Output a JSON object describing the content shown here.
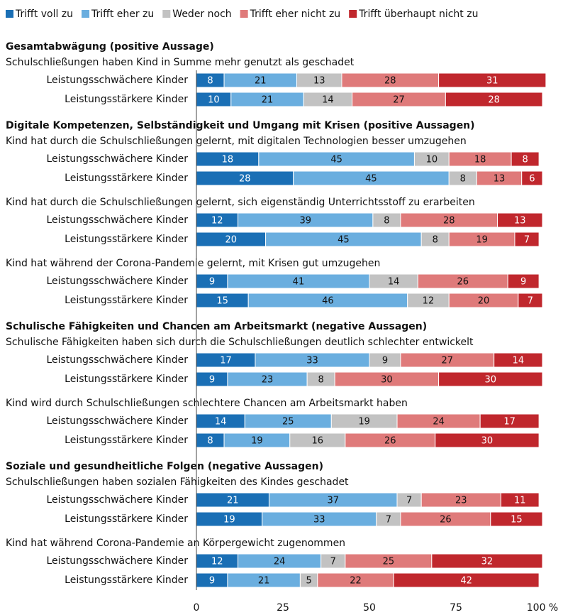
{
  "chart_data": {
    "type": "stacked_barh",
    "series": [
      {
        "name": "Trifft voll zu",
        "color": "#1a6fb5"
      },
      {
        "name": "Trifft eher zu",
        "color": "#6aaedf"
      },
      {
        "name": "Weder noch",
        "color": "#c2c2c2"
      },
      {
        "name": "Trifft eher nicht zu",
        "color": "#df7a7a"
      },
      {
        "name": "Trifft überhaupt nicht zu",
        "color": "#c0272d"
      }
    ],
    "groups": [
      {
        "title": "Gesamtabwägung (positive Aussage)",
        "statements": [
          {
            "text": "Schulschließungen haben Kind in Summe mehr genutzt als geschadet",
            "rows": [
              {
                "label": "Leistungsschwächere Kinder",
                "values": [
                  8,
                  21,
                  13,
                  28,
                  31
                ]
              },
              {
                "label": "Leistungsstärkere Kinder",
                "values": [
                  10,
                  21,
                  14,
                  27,
                  28
                ]
              }
            ]
          }
        ]
      },
      {
        "title": "Digitale Kompetenzen, Selbständigkeit und Umgang mit Krisen (positive Aussagen)",
        "statements": [
          {
            "text": "Kind hat durch die Schulschließungen gelernt, mit digitalen Technologien besser umzugehen",
            "rows": [
              {
                "label": "Leistungsschwächere Kinder",
                "values": [
                  18,
                  45,
                  10,
                  18,
                  8
                ]
              },
              {
                "label": "Leistungsstärkere Kinder",
                "values": [
                  28,
                  45,
                  8,
                  13,
                  6
                ]
              }
            ]
          },
          {
            "text": "Kind hat durch die Schulschließungen gelernt, sich eigenständig Unterrichtsstoff zu erarbeiten",
            "rows": [
              {
                "label": "Leistungsschwächere Kinder",
                "values": [
                  12,
                  39,
                  8,
                  28,
                  13
                ]
              },
              {
                "label": "Leistungsstärkere Kinder",
                "values": [
                  20,
                  45,
                  8,
                  19,
                  7
                ]
              }
            ]
          },
          {
            "text": "Kind hat während der Corona-Pandemie gelernt, mit Krisen gut umzugehen",
            "rows": [
              {
                "label": "Leistungsschwächere Kinder",
                "values": [
                  9,
                  41,
                  14,
                  26,
                  9
                ]
              },
              {
                "label": "Leistungsstärkere Kinder",
                "values": [
                  15,
                  46,
                  12,
                  20,
                  7
                ]
              }
            ]
          }
        ]
      },
      {
        "title": "Schulische Fähigkeiten und Chancen am Arbeitsmarkt (negative Aussagen)",
        "statements": [
          {
            "text": "Schulische Fähigkeiten haben sich durch die Schulschließungen deutlich schlechter entwickelt",
            "rows": [
              {
                "label": "Leistungsschwächere Kinder",
                "values": [
                  17,
                  33,
                  9,
                  27,
                  14
                ]
              },
              {
                "label": "Leistungsstärkere Kinder",
                "values": [
                  9,
                  23,
                  8,
                  30,
                  30
                ]
              }
            ]
          },
          {
            "text": "Kind wird durch Schulschließungen schlechtere Chancen am Arbeitsmarkt haben",
            "rows": [
              {
                "label": "Leistungsschwächere Kinder",
                "values": [
                  14,
                  25,
                  19,
                  24,
                  17
                ]
              },
              {
                "label": "Leistungsstärkere Kinder",
                "values": [
                  8,
                  19,
                  16,
                  26,
                  30
                ]
              }
            ]
          }
        ]
      },
      {
        "title": "Soziale und gesundheitliche Folgen (negative Aussagen)",
        "statements": [
          {
            "text": "Schulschließungen haben sozialen Fähigkeiten des Kindes geschadet",
            "rows": [
              {
                "label": "Leistungsschwächere Kinder",
                "values": [
                  21,
                  37,
                  7,
                  23,
                  11
                ]
              },
              {
                "label": "Leistungsstärkere Kinder",
                "values": [
                  19,
                  33,
                  7,
                  26,
                  15
                ]
              }
            ]
          },
          {
            "text": "Kind hat während Corona-Pandemie an Körpergewicht zugenommen",
            "rows": [
              {
                "label": "Leistungsschwächere Kinder",
                "values": [
                  12,
                  24,
                  7,
                  25,
                  32
                ]
              },
              {
                "label": "Leistungsstärkere Kinder",
                "values": [
                  9,
                  21,
                  5,
                  22,
                  42
                ]
              }
            ]
          }
        ]
      }
    ],
    "xlim": [
      0,
      100
    ],
    "xticks": [
      0,
      25,
      50,
      75,
      {
        "value": 100,
        "label": "100 %"
      }
    ]
  }
}
